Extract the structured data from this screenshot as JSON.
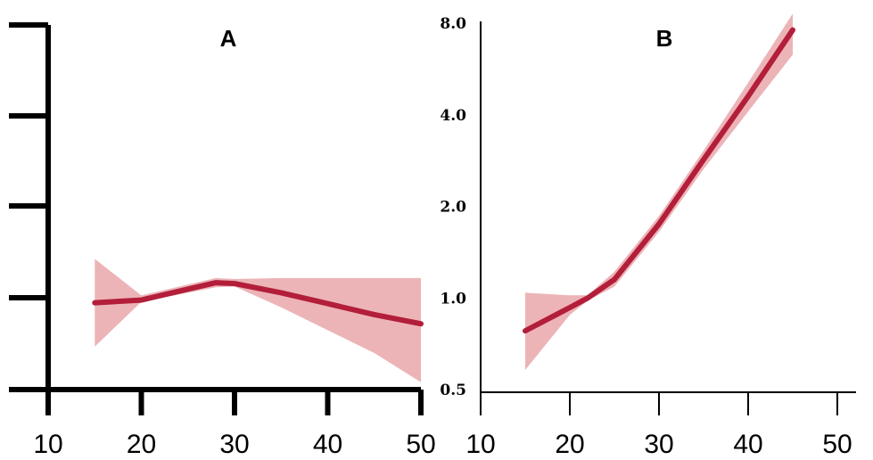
{
  "chart_data": [
    {
      "type": "line",
      "title": "A",
      "xlabel": "",
      "ylabel": "",
      "xlim": [
        10,
        50
      ],
      "x_ticks": [
        10,
        20,
        30,
        40,
        50
      ],
      "y_ticks": [],
      "grid": false,
      "series": [
        {
          "x": [
            15,
            20,
            25,
            28,
            30,
            35,
            40,
            45,
            50
          ],
          "y": [
            0.95,
            0.98,
            1.1,
            1.17,
            1.16,
            1.06,
            0.94,
            0.82,
            0.72
          ],
          "lower": [
            0.47,
            0.96,
            1.06,
            1.12,
            1.13,
            0.9,
            0.65,
            0.4,
            0.08
          ],
          "upper": [
            1.43,
            1.03,
            1.15,
            1.22,
            1.21,
            1.22,
            1.22,
            1.22,
            1.22
          ]
        }
      ],
      "colors": {
        "line": "#b31e3a",
        "band": "#e59b9f"
      }
    },
    {
      "type": "line",
      "title": "B",
      "xlabel": "",
      "ylabel": "",
      "xlim": [
        10,
        50
      ],
      "ylim": [
        0.5,
        8.0
      ],
      "yscale": "log2",
      "x_ticks": [
        10,
        20,
        30,
        40,
        50
      ],
      "y_ticks": [
        "8.0",
        "4.0",
        "2.0",
        "1.0",
        "0.5"
      ],
      "grid": false,
      "series": [
        {
          "x": [
            15,
            20,
            22,
            25,
            30,
            35,
            40,
            45
          ],
          "y": [
            0.78,
            0.93,
            1.0,
            1.15,
            1.75,
            2.85,
            4.6,
            7.6
          ],
          "lower": [
            0.58,
            0.88,
            0.98,
            1.09,
            1.65,
            2.65,
            4.1,
            6.3
          ],
          "upper": [
            1.04,
            1.02,
            1.02,
            1.22,
            1.86,
            3.05,
            5.1,
            8.6
          ]
        }
      ],
      "colors": {
        "line": "#b31e3a",
        "band": "#e59b9f"
      }
    }
  ]
}
